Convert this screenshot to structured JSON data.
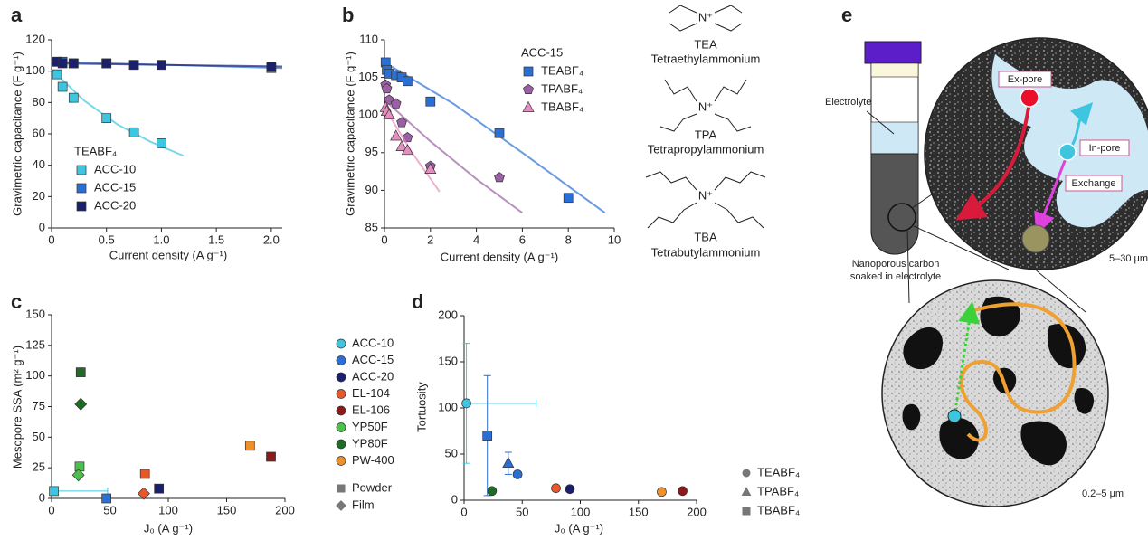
{
  "chart_data": [
    {
      "type": "scatter",
      "panel": "a",
      "xlabel": "Current density (A g⁻¹)",
      "ylabel": "Gravimetric capacitance (F g⁻¹)",
      "xlim": [
        0,
        2.1
      ],
      "xticks": [
        0,
        0.5,
        {
          "value": 1,
          "label": "1.0"
        },
        1.5,
        {
          "value": 2,
          "label": "2.0"
        }
      ],
      "ylim": [
        0,
        120
      ],
      "yticks": [
        0,
        20,
        40,
        60,
        80,
        100,
        120
      ],
      "legend_title": "TEABF₄",
      "series": [
        {
          "name": "ACC-10",
          "color": "#3ec6e0",
          "marker": "square",
          "x": [
            0.05,
            0.1,
            0.2,
            0.5,
            0.75,
            1.0
          ],
          "y": [
            98,
            90,
            83,
            70,
            61,
            54
          ],
          "fit": {
            "x": [
              0,
              0.3,
              0.6,
              0.9,
              1.2
            ],
            "y": [
              101,
              81,
              66,
              55,
              46
            ]
          }
        },
        {
          "name": "ACC-15",
          "color": "#2a6fd6",
          "marker": "square",
          "x": [
            0.05,
            0.1,
            0.2,
            0.5,
            0.75,
            1.0,
            2.0
          ],
          "y": [
            106,
            106,
            105,
            105,
            104,
            104,
            102
          ],
          "fit": {
            "x": [
              0,
              2.1
            ],
            "y": [
              106,
              102
            ]
          }
        },
        {
          "name": "ACC-20",
          "color": "#1a1f6e",
          "marker": "square",
          "x": [
            0.05,
            0.1,
            0.2,
            0.5,
            0.75,
            1.0,
            2.0
          ],
          "y": [
            106,
            105,
            105,
            105,
            104,
            104,
            103
          ],
          "fit": {
            "x": [
              0,
              2.1
            ],
            "y": [
              105,
              103
            ]
          }
        }
      ]
    },
    {
      "type": "scatter",
      "panel": "b",
      "xlabel": "Current density (A g⁻¹)",
      "ylabel": "Gravimetric capacitance (F g⁻¹)",
      "xlim": [
        0,
        10
      ],
      "xticks": [
        0,
        2,
        4,
        6,
        8,
        10
      ],
      "ylim": [
        85,
        110
      ],
      "yticks": [
        85,
        90,
        95,
        100,
        105,
        110
      ],
      "legend_title": "ACC-15",
      "series": [
        {
          "name": "TEABF₄",
          "color": "#2a6fd6",
          "marker": "square",
          "x": [
            0.05,
            0.1,
            0.2,
            0.5,
            0.75,
            1,
            2,
            5,
            8
          ],
          "y": [
            107,
            106,
            105.5,
            105.3,
            105,
            104.5,
            101.8,
            97.6,
            89
          ],
          "fit": {
            "x": [
              0,
              3,
              6,
              9.6
            ],
            "y": [
              107,
              101.5,
              95,
              87
            ]
          }
        },
        {
          "name": "TPABF₄",
          "color": "#9b5fa5",
          "marker": "pentagon",
          "x": [
            0.05,
            0.1,
            0.2,
            0.5,
            0.75,
            1,
            2,
            5
          ],
          "y": [
            104,
            103.5,
            102,
            101.5,
            99,
            97,
            93.2,
            91.7
          ],
          "fit": {
            "x": [
              0,
              2,
              4,
              6
            ],
            "y": [
              102,
              96.5,
              91.5,
              87
            ]
          }
        },
        {
          "name": "TBABF₄",
          "color": "#e58fc0",
          "marker": "triangle",
          "x": [
            0.05,
            0.1,
            0.2,
            0.5,
            0.75,
            1,
            2
          ],
          "y": [
            101,
            100.5,
            100,
            97.2,
            95.8,
            95.3,
            92.8
          ],
          "fit": {
            "x": [
              0,
              1.2,
              2.4
            ],
            "y": [
              101,
              95,
              89.8
            ]
          }
        }
      ]
    },
    {
      "type": "scatter",
      "panel": "c",
      "xlabel": "J₀ (A g⁻¹)",
      "ylabel": "Mesopore SSA (m² g⁻¹)",
      "xlim": [
        0,
        200
      ],
      "xticks": [
        0,
        50,
        100,
        150,
        200
      ],
      "ylim": [
        0,
        150
      ],
      "yticks": [
        0,
        25,
        50,
        75,
        100,
        125,
        150
      ],
      "series": [
        {
          "name": "ACC-10",
          "color": "#3ec6e0",
          "x": [
            2
          ],
          "y": [
            6
          ],
          "markers": [
            "square"
          ],
          "xerr": [
            46
          ]
        },
        {
          "name": "ACC-15",
          "color": "#2a6fd6",
          "x": [
            47
          ],
          "y": [
            0
          ],
          "markers": [
            "square"
          ]
        },
        {
          "name": "ACC-20",
          "color": "#1a1f6e",
          "x": [
            92
          ],
          "y": [
            8
          ],
          "markers": [
            "square"
          ]
        },
        {
          "name": "EL-104",
          "color": "#e8572a",
          "x": [
            80,
            79
          ],
          "y": [
            20,
            4
          ],
          "markers": [
            "square",
            "diamond"
          ]
        },
        {
          "name": "EL-106",
          "color": "#8b1a1a",
          "x": [
            188
          ],
          "y": [
            34
          ],
          "markers": [
            "square"
          ]
        },
        {
          "name": "YP50F",
          "color": "#4cc04c",
          "x": [
            24,
            23
          ],
          "y": [
            26,
            19
          ],
          "markers": [
            "square",
            "diamond"
          ]
        },
        {
          "name": "YP80F",
          "color": "#1e6b25",
          "x": [
            25,
            25
          ],
          "y": [
            103,
            77
          ],
          "markers": [
            "square",
            "diamond"
          ]
        },
        {
          "name": "PW-400",
          "color": "#f0902a",
          "x": [
            170
          ],
          "y": [
            43
          ],
          "markers": [
            "square"
          ]
        }
      ],
      "shape_legend": [
        {
          "label": "Powder",
          "marker": "square"
        },
        {
          "label": "Film",
          "marker": "diamond"
        }
      ]
    },
    {
      "type": "scatter",
      "panel": "d",
      "xlabel": "J₀ (A g⁻¹)",
      "ylabel": "Tortuosity",
      "xlim": [
        0,
        200
      ],
      "xticks": [
        0,
        50,
        100,
        150,
        200
      ],
      "ylim": [
        0,
        200
      ],
      "yticks": [
        0,
        50,
        100,
        150,
        200
      ],
      "series": [
        {
          "color": "#3ec6e0",
          "x": [
            2
          ],
          "y": [
            105
          ],
          "markers": [
            "circle"
          ],
          "xerr": [
            60
          ],
          "yerr": [
            65
          ]
        },
        {
          "color": "#2a6fd6",
          "x": [
            20,
            38,
            46
          ],
          "y": [
            70,
            40,
            28
          ],
          "markers": [
            "square",
            "triangle",
            "circle"
          ],
          "yerr": [
            65,
            12,
            0
          ]
        },
        {
          "color": "#1a1f6e",
          "x": [
            91
          ],
          "y": [
            12
          ],
          "markers": [
            "circle"
          ]
        },
        {
          "color": "#e8572a",
          "x": [
            79
          ],
          "y": [
            13
          ],
          "markers": [
            "circle"
          ]
        },
        {
          "color": "#8b1a1a",
          "x": [
            188
          ],
          "y": [
            10
          ],
          "markers": [
            "circle"
          ]
        },
        {
          "color": "#1e6b25",
          "x": [
            24
          ],
          "y": [
            10
          ],
          "markers": [
            "circle"
          ]
        },
        {
          "color": "#f0902a",
          "x": [
            170
          ],
          "y": [
            9
          ],
          "markers": [
            "circle"
          ]
        }
      ],
      "shape_legend": [
        {
          "label": "TEABF₄",
          "marker": "circle"
        },
        {
          "label": "TPABF₄",
          "marker": "triangle"
        },
        {
          "label": "TBABF₄",
          "marker": "square"
        }
      ]
    }
  ],
  "structures": [
    {
      "atom": "N⁺",
      "abbr": "TEA",
      "name": "Tetraethylammonium"
    },
    {
      "atom": "N⁺",
      "abbr": "TPA",
      "name": "Tetrapropylammonium"
    },
    {
      "atom": "N⁺",
      "abbr": "TBA",
      "name": "Tetrabutylammonium"
    }
  ],
  "diagram": {
    "panel": "e",
    "electrolyte": "Electrolyte",
    "ex_pore": "Ex-pore",
    "in_pore": "In-pore",
    "exchange": "Exchange",
    "caption_lines": [
      "Nanoporous carbon",
      "soaked in electrolyte"
    ],
    "scale_top": "5–30 μm",
    "scale_bottom": "0.2–5 μm"
  }
}
